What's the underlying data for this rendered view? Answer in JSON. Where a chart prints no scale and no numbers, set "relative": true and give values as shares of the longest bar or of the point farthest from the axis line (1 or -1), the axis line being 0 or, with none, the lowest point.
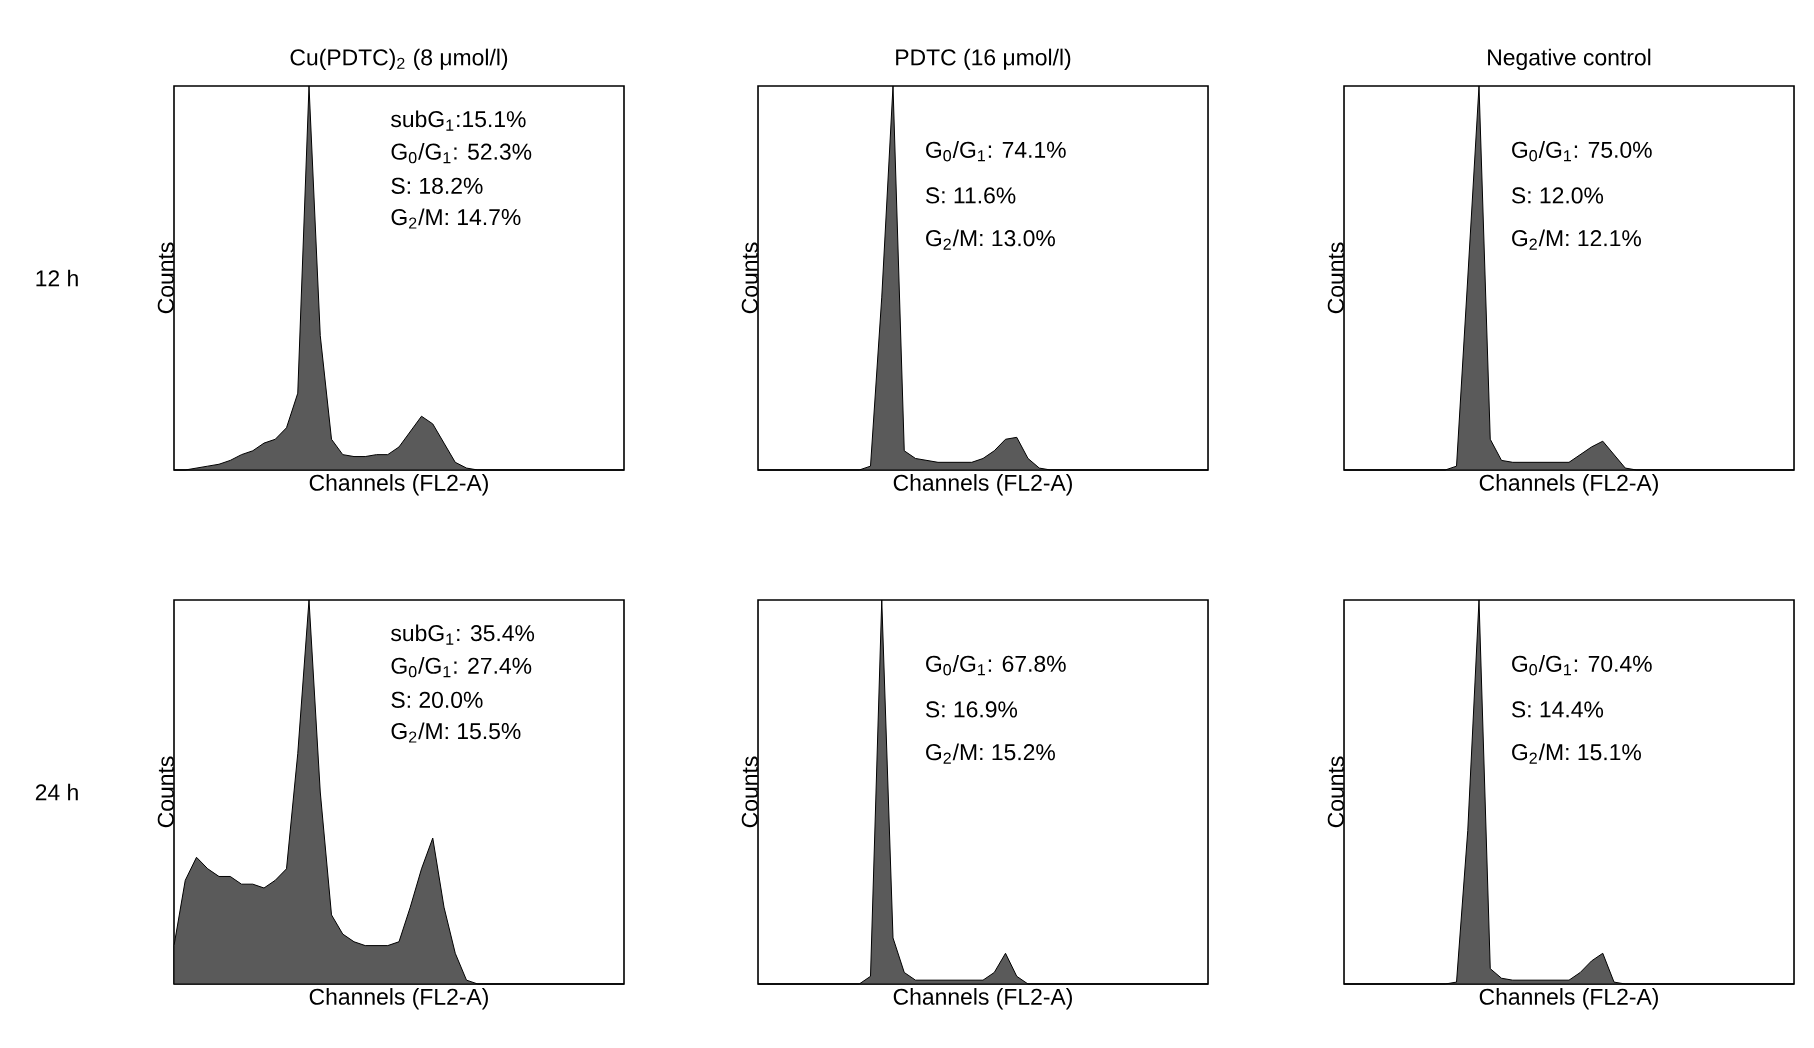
{
  "chart_data": [
    {
      "type": "area",
      "relative": true,
      "title": "Cu(PDTC)$_{2}$ (8 μmol/l)",
      "subtitle": "12 h",
      "xlabel": "Channels (FL2-A)",
      "ylabel": "Counts",
      "color": "#5a5a5a",
      "annotations": [
        "subG$_{1}$:15.1%",
        "G$_{0}$/G$_{1}$: 52.3%",
        "S: 18.2%",
        "G$_{2}$/M: 14.7%"
      ],
      "categories": [
        null,
        null,
        null,
        null,
        null,
        null,
        null,
        null,
        null,
        null,
        null,
        null,
        null,
        null,
        null,
        null,
        null,
        null,
        null,
        null,
        null,
        null,
        null,
        null,
        null,
        null,
        null,
        null,
        null,
        null,
        null,
        null,
        null,
        null,
        null,
        null,
        null,
        null,
        null,
        null,
        null
      ],
      "values": [
        0,
        0,
        0.005,
        0.01,
        0.015,
        0.025,
        0.04,
        0.05,
        0.07,
        0.08,
        0.11,
        0.2,
        1,
        0.35,
        0.08,
        0.04,
        0.035,
        0.035,
        0.04,
        0.04,
        0.06,
        0.1,
        0.14,
        0.12,
        0.07,
        0.02,
        0.005,
        0,
        0,
        0,
        0,
        0,
        0,
        0,
        0,
        0,
        0,
        0,
        0,
        0,
        0
      ]
    },
    {
      "type": "area",
      "relative": true,
      "title": "PDTC (16 μmol/l)",
      "xlabel": "Channels (FL2-A)",
      "ylabel": "Counts",
      "color": "#5a5a5a",
      "annotations": [
        "G$_{0}$/G$_{1}$: 74.1%",
        "S: 11.6%",
        "G$_{2}$/M: 13.0%"
      ],
      "categories": [
        null,
        null,
        null,
        null,
        null,
        null,
        null,
        null,
        null,
        null,
        null,
        null,
        null,
        null,
        null,
        null,
        null,
        null,
        null,
        null,
        null,
        null,
        null,
        null,
        null,
        null,
        null,
        null,
        null,
        null,
        null,
        null,
        null,
        null,
        null,
        null,
        null,
        null,
        null,
        null,
        null
      ],
      "values": [
        0,
        0,
        0,
        0,
        0,
        0,
        0,
        0,
        0,
        0,
        0.01,
        0.45,
        1,
        0.05,
        0.03,
        0.025,
        0.02,
        0.02,
        0.02,
        0.02,
        0.03,
        0.05,
        0.08,
        0.085,
        0.03,
        0.005,
        0,
        0,
        0,
        0,
        0,
        0,
        0,
        0,
        0,
        0,
        0,
        0,
        0,
        0,
        0
      ]
    },
    {
      "type": "area",
      "relative": true,
      "title": "Negative control",
      "xlabel": "Channels (FL2-A)",
      "ylabel": "Counts",
      "color": "#5a5a5a",
      "annotations": [
        "G$_{0}$/G$_{1}$: 75.0%",
        "S: 12.0%",
        "G$_{2}$/M: 12.1%"
      ],
      "categories": [
        null,
        null,
        null,
        null,
        null,
        null,
        null,
        null,
        null,
        null,
        null,
        null,
        null,
        null,
        null,
        null,
        null,
        null,
        null,
        null,
        null,
        null,
        null,
        null,
        null,
        null,
        null,
        null,
        null,
        null,
        null,
        null,
        null,
        null,
        null,
        null,
        null,
        null,
        null,
        null,
        null
      ],
      "values": [
        0,
        0,
        0,
        0,
        0,
        0,
        0,
        0,
        0,
        0,
        0.01,
        0.5,
        1,
        0.08,
        0.025,
        0.02,
        0.02,
        0.02,
        0.02,
        0.02,
        0.02,
        0.04,
        0.06,
        0.075,
        0.04,
        0.005,
        0,
        0,
        0,
        0,
        0,
        0,
        0,
        0,
        0,
        0,
        0,
        0,
        0,
        0,
        0
      ]
    },
    {
      "type": "area",
      "relative": true,
      "subtitle": "24 h",
      "xlabel": "Channels (FL2-A)",
      "ylabel": "Counts",
      "color": "#5a5a5a",
      "annotations": [
        "subG$_{1}$: 35.4%",
        "G$_{0}$/G$_{1}$: 27.4%",
        "S: 20.0%",
        "G$_{2}$/M: 15.5%"
      ],
      "categories": [
        null,
        null,
        null,
        null,
        null,
        null,
        null,
        null,
        null,
        null,
        null,
        null,
        null,
        null,
        null,
        null,
        null,
        null,
        null,
        null,
        null,
        null,
        null,
        null,
        null,
        null,
        null,
        null,
        null,
        null,
        null,
        null,
        null,
        null,
        null,
        null,
        null,
        null,
        null,
        null,
        null
      ],
      "values": [
        0.1,
        0.27,
        0.33,
        0.3,
        0.28,
        0.28,
        0.26,
        0.26,
        0.25,
        0.27,
        0.3,
        0.6,
        1,
        0.5,
        0.18,
        0.13,
        0.11,
        0.1,
        0.1,
        0.1,
        0.11,
        0.2,
        0.3,
        0.38,
        0.2,
        0.08,
        0.01,
        0,
        0,
        0,
        0,
        0,
        0,
        0,
        0,
        0,
        0,
        0,
        0,
        0,
        0
      ]
    },
    {
      "type": "area",
      "relative": true,
      "xlabel": "Channels (FL2-A)",
      "ylabel": "Counts",
      "color": "#5a5a5a",
      "annotations": [
        "G$_{0}$/G$_{1}$: 67.8%",
        "S: 16.9%",
        "G$_{2}$/M: 15.2%"
      ],
      "categories": [
        null,
        null,
        null,
        null,
        null,
        null,
        null,
        null,
        null,
        null,
        null,
        null,
        null,
        null,
        null,
        null,
        null,
        null,
        null,
        null,
        null,
        null,
        null,
        null,
        null,
        null,
        null,
        null,
        null,
        null,
        null,
        null,
        null,
        null,
        null,
        null,
        null,
        null,
        null,
        null,
        null
      ],
      "values": [
        0,
        0,
        0,
        0,
        0,
        0,
        0,
        0,
        0,
        0,
        0.02,
        1,
        0.12,
        0.03,
        0.01,
        0.01,
        0.01,
        0.01,
        0.01,
        0.01,
        0.01,
        0.03,
        0.08,
        0.02,
        0,
        0,
        0,
        0,
        0,
        0,
        0,
        0,
        0,
        0,
        0,
        0,
        0,
        0,
        0,
        0,
        0
      ]
    },
    {
      "type": "area",
      "relative": true,
      "xlabel": "Channels (FL2-A)",
      "ylabel": "Counts",
      "color": "#5a5a5a",
      "annotations": [
        "G$_{0}$/G$_{1}$: 70.4%",
        "S: 14.4%",
        "G$_{2}$/M: 15.1%"
      ],
      "categories": [
        null,
        null,
        null,
        null,
        null,
        null,
        null,
        null,
        null,
        null,
        null,
        null,
        null,
        null,
        null,
        null,
        null,
        null,
        null,
        null,
        null,
        null,
        null,
        null,
        null,
        null,
        null,
        null,
        null,
        null,
        null,
        null,
        null,
        null,
        null,
        null,
        null,
        null,
        null,
        null,
        null
      ],
      "values": [
        0,
        0,
        0,
        0,
        0,
        0,
        0,
        0,
        0,
        0,
        0.005,
        0.4,
        1,
        0.04,
        0.015,
        0.01,
        0.01,
        0.01,
        0.01,
        0.01,
        0.01,
        0.03,
        0.06,
        0.08,
        0.005,
        0,
        0,
        0,
        0,
        0,
        0,
        0,
        0,
        0,
        0,
        0,
        0,
        0,
        0,
        0,
        0
      ]
    }
  ]
}
